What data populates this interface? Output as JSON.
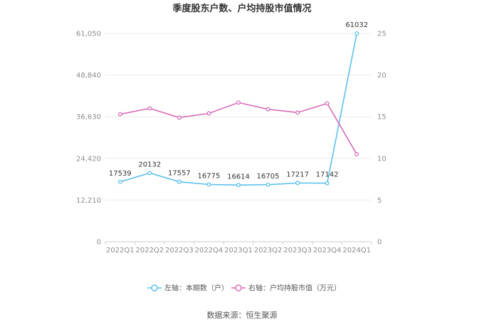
{
  "chart_data": {
    "type": "line",
    "title": "季度股东户数、户均持股市值情况",
    "categories": [
      "2022Q1",
      "2022Q2",
      "2022Q3",
      "2022Q4",
      "2023Q1",
      "2023Q2",
      "2023Q3",
      "2023Q4",
      "2024Q1"
    ],
    "left_axis": {
      "ticks": [
        "0",
        "12,210",
        "24,420",
        "36,630",
        "48,840",
        "61,050"
      ],
      "ylim": [
        0,
        61050
      ]
    },
    "right_axis": {
      "ticks": [
        "0",
        "5",
        "10",
        "15",
        "20",
        "25"
      ],
      "ylim": [
        0,
        25
      ]
    },
    "series": [
      {
        "name": "左轴：本期数（户）",
        "axis": "left",
        "color": "#5bc0eb",
        "values": [
          17539,
          20132,
          17557,
          16775,
          16614,
          16705,
          17217,
          17142,
          61032
        ],
        "labels": [
          "17539",
          "20132",
          "17557",
          "16775",
          "16614",
          "16705",
          "17217",
          "17142",
          "61032"
        ]
      },
      {
        "name": "右轴：户均持股市值（万元）",
        "axis": "right",
        "color": "#d96cb8",
        "values": [
          15.3,
          16.0,
          14.9,
          15.4,
          16.7,
          15.9,
          15.5,
          16.6,
          10.5
        ]
      }
    ],
    "grid": true,
    "legend_position": "bottom"
  },
  "source": "数据来源：恒生聚源"
}
